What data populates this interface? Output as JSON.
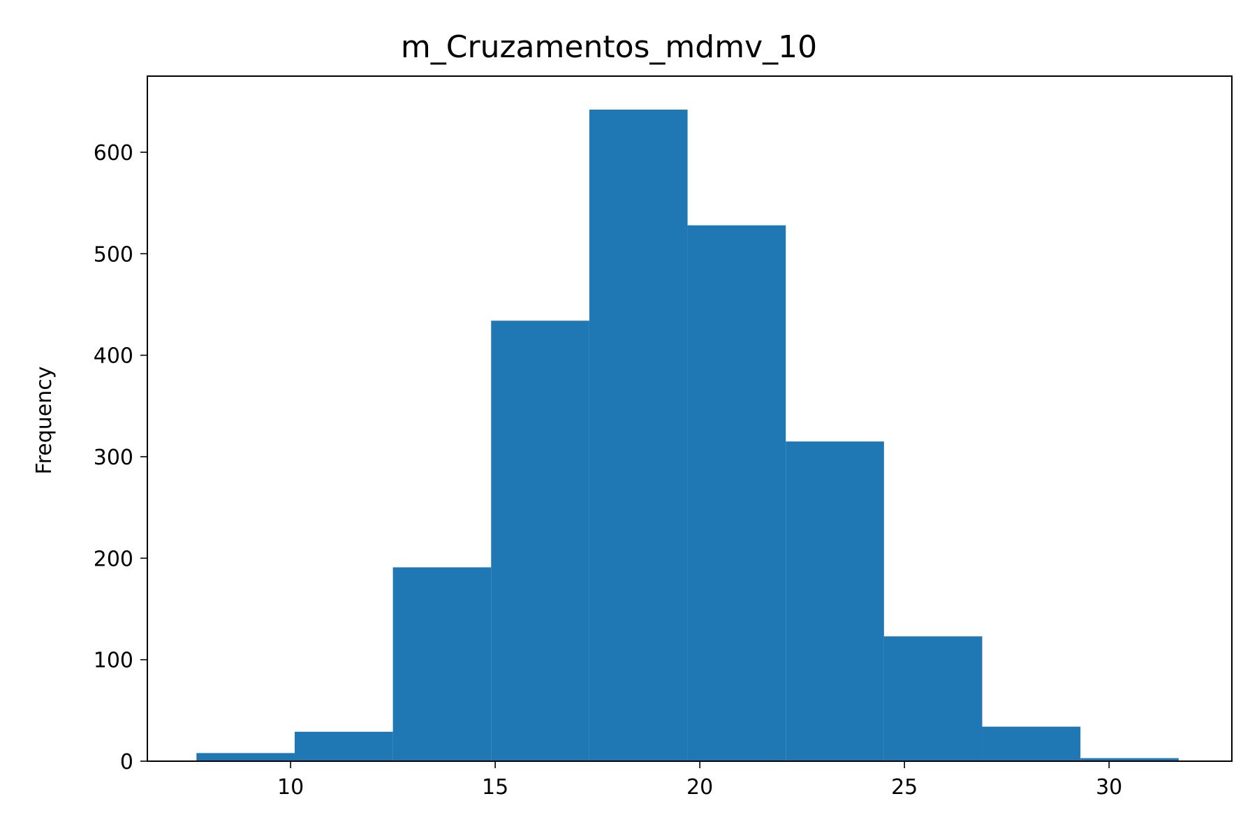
{
  "chart_data": {
    "type": "bar",
    "subtype": "histogram",
    "title": "m_Cruzamentos_mdmv_10",
    "xlabel": "",
    "ylabel": "Frequency",
    "bin_edges": [
      7.7,
      10.1,
      12.5,
      14.9,
      17.3,
      19.7,
      22.1,
      24.5,
      26.9,
      29.3,
      31.7
    ],
    "values": [
      8,
      29,
      191,
      434,
      642,
      528,
      315,
      123,
      34,
      3
    ],
    "xlim": [
      6.5,
      33.0
    ],
    "ylim": [
      0,
      675
    ],
    "xticks": [
      10,
      15,
      20,
      25,
      30
    ],
    "yticks": [
      0,
      100,
      200,
      300,
      400,
      500,
      600
    ],
    "bar_color": "#1f77b4",
    "grid": false,
    "legend": "none"
  }
}
